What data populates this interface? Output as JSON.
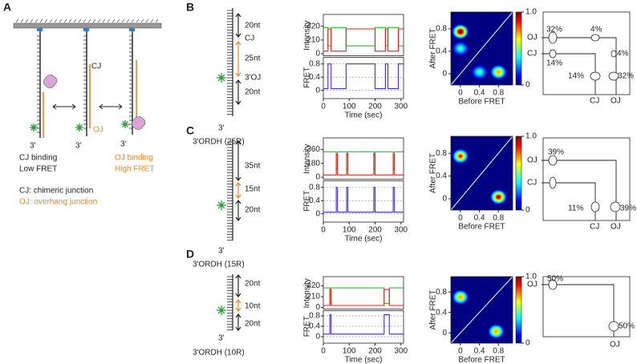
{
  "panel_a": {
    "label": "A",
    "cj": "CJ",
    "oj": "OJ",
    "three_prime": [
      "3'",
      "3'",
      "3'"
    ],
    "left_caption": [
      "CJ binding",
      "Low FRET"
    ],
    "right_caption": [
      "OJ binding",
      "High FRET"
    ],
    "legend": [
      "CJ: chimeric junction",
      "OJ: overhang junction"
    ]
  },
  "panels": [
    {
      "label": "B",
      "schematic": {
        "texts": [
          {
            "text": "20nt",
            "color": "#222222"
          },
          {
            "text": "CJ",
            "color": "#222222"
          },
          {
            "text": "25nt",
            "color": "#e8892b"
          },
          {
            "text": "3'OJ",
            "color": "#e8892b"
          },
          {
            "text": "20nt",
            "color": "#222222"
          },
          {
            "text": "3'",
            "color": "#222222"
          }
        ],
        "caption": "3'ORDH (25R)"
      },
      "trace": {
        "fret_label": "FRET",
        "int_label": "Intensity",
        "xlabel": "Time (sec)",
        "xlim": [
          0,
          310
        ],
        "xticks": [
          0,
          100,
          200,
          300
        ],
        "int_lim": [
          -30,
          600
        ],
        "int_ticks": [
          420,
          210,
          0
        ],
        "fret_lim": [
          -0.25,
          1.0
        ],
        "fret_ticks": [
          0.8,
          0.4,
          0
        ],
        "fret_grid": true,
        "time": [
          0,
          18,
          18,
          30,
          30,
          88,
          88,
          200,
          200,
          240,
          240,
          250,
          250,
          290,
          290,
          310
        ],
        "green": [
          400,
          400,
          120,
          120,
          400,
          400,
          120,
          120,
          400,
          400,
          120,
          120,
          400,
          400,
          120,
          120
        ],
        "red": [
          40,
          40,
          380,
          380,
          40,
          40,
          380,
          380,
          40,
          40,
          380,
          380,
          40,
          40,
          380,
          380
        ],
        "fret": [
          0.05,
          0.05,
          0.8,
          0.8,
          0.05,
          0.05,
          0.8,
          0.8,
          0.05,
          0.05,
          0.8,
          0.8,
          0.05,
          0.05,
          0.8,
          0.8
        ]
      },
      "heatmap": {
        "xlabel": "Before FRET",
        "ylabel": "After FRET",
        "xlim": [
          -0.2,
          1.1
        ],
        "ylim": [
          -0.2,
          1.1
        ],
        "xticks": [
          0,
          0.4,
          0.8
        ],
        "yticks": [
          0,
          0.4,
          0.8
        ],
        "cbar_lim": [
          0,
          1
        ],
        "cbar_ticks": [
          {
            "value": 1,
            "label": "1.0"
          },
          0
        ],
        "peaks": [
          {
            "before": 0,
            "after": 0.75,
            "density": 1
          },
          {
            "before": 0,
            "after": 0.45,
            "density": 0.4
          },
          {
            "before": 0.4,
            "after": 0.03,
            "density": 0.4
          },
          {
            "before": 0.8,
            "after": 0.03,
            "density": 0.7
          }
        ]
      },
      "kinetics": [
        {
          "text": "OJ",
          "color": "#e8892b"
        },
        {
          "text": "CJ",
          "color": "#222222"
        },
        {
          "text": "32%",
          "color": "#e8892b"
        },
        {
          "text": "4%",
          "color": "#222222"
        },
        {
          "text": "14%",
          "color": "#222222"
        },
        {
          "text": "4%",
          "color": "#222222"
        },
        {
          "text": "14%",
          "color": "#222222"
        },
        {
          "text": "32%",
          "color": "#e8892b"
        },
        {
          "text": "CJ",
          "color": "#222222"
        },
        {
          "text": "OJ",
          "color": "#e8892b"
        }
      ]
    },
    {
      "label": "C",
      "schematic": {
        "texts": [
          {
            "text": "35nt",
            "color": "#222222"
          },
          {
            "text": "15nt",
            "color": "#e8892b"
          },
          {
            "text": "20nt",
            "color": "#222222"
          },
          {
            "text": "3'",
            "color": "#222222"
          }
        ],
        "caption": "3'ORDH (15R)"
      },
      "trace": {
        "fret_label": "FRET",
        "int_label": "Intensity",
        "xlabel": "Time (sec)",
        "xlim": [
          0,
          310
        ],
        "xticks": [
          0,
          100,
          200,
          300
        ],
        "int_lim": [
          -25,
          510
        ],
        "int_ticks": [
          360,
          180,
          0
        ],
        "fret_lim": [
          -0.25,
          1.0
        ],
        "fret_ticks": [
          0.8,
          0.4,
          0
        ],
        "fret_grid": true,
        "time": [
          0,
          50,
          50,
          55,
          55,
          90,
          90,
          95,
          95,
          195,
          195,
          200,
          200,
          270,
          270,
          275,
          275,
          310
        ],
        "green": [
          330,
          330,
          100,
          100,
          330,
          330,
          100,
          100,
          330,
          330,
          100,
          100,
          330,
          330,
          100,
          100,
          330,
          330
        ],
        "red": [
          30,
          30,
          300,
          300,
          30,
          30,
          300,
          300,
          30,
          30,
          300,
          300,
          30,
          30,
          300,
          300,
          30,
          30
        ],
        "fret": [
          0.05,
          0.05,
          0.8,
          0.8,
          0.05,
          0.05,
          0.8,
          0.8,
          0.05,
          0.05,
          0.8,
          0.8,
          0.05,
          0.05,
          0.8,
          0.8,
          0.05,
          0.05
        ]
      },
      "heatmap": {
        "xlabel": "Before FRET",
        "ylabel": "After FRET",
        "xlim": [
          -0.2,
          1.1
        ],
        "ylim": [
          -0.2,
          1.1
        ],
        "xticks": [
          0,
          0.4,
          0.8
        ],
        "yticks": [
          0,
          0.4,
          0.8
        ],
        "cbar_lim": [
          0,
          1
        ],
        "cbar_ticks": [
          {
            "value": 1,
            "label": "1.0"
          },
          0
        ],
        "peaks": [
          {
            "before": 0,
            "after": 0.75,
            "density": 0.8
          },
          {
            "before": 0.8,
            "after": 0.03,
            "density": 0.9
          }
        ]
      },
      "kinetics": [
        {
          "text": "OJ",
          "color": "#e8892b"
        },
        {
          "text": "39%",
          "color": "#e8892b"
        },
        {
          "text": "CJ",
          "color": "#222222"
        },
        {
          "text": "11%",
          "color": "#222222"
        },
        {
          "text": "39%",
          "color": "#e8892b"
        },
        {
          "text": "CJ",
          "color": "#222222"
        },
        {
          "text": "OJ",
          "color": "#e8892b"
        }
      ]
    },
    {
      "label": "D",
      "schematic": {
        "texts": [
          {
            "text": "20nt",
            "color": "#222222"
          },
          {
            "text": "10nt",
            "color": "#e8892b"
          },
          {
            "text": "20nt",
            "color": "#222222"
          },
          {
            "text": "3'",
            "color": "#222222"
          }
        ],
        "caption": "3'ORDH (10R)"
      },
      "trace": {
        "fret_label": "FRET",
        "int_label": "Intensity",
        "xlabel": "Time (sec)",
        "xlim": [
          0,
          310
        ],
        "xticks": [
          0,
          100,
          200,
          300
        ],
        "int_lim": [
          -30,
          600
        ],
        "int_ticks": [
          420,
          210,
          0
        ],
        "fret_lim": [
          -0.25,
          1.0
        ],
        "fret_ticks": [
          0.8,
          0.4,
          0
        ],
        "fret_grid": true,
        "time": [
          0,
          25,
          25,
          30,
          30,
          235,
          235,
          255,
          255,
          310
        ],
        "green": [
          380,
          380,
          80,
          80,
          380,
          380,
          80,
          80,
          380,
          380
        ],
        "red": [
          40,
          40,
          350,
          350,
          40,
          40,
          350,
          350,
          40,
          40
        ],
        "fret": [
          0.1,
          0.1,
          0.85,
          0.85,
          0.1,
          0.1,
          0.85,
          0.85,
          0.1,
          0.1
        ]
      },
      "heatmap": {
        "xlabel": "Before FRET",
        "ylabel": "After FRET",
        "xlim": [
          -0.2,
          1.1
        ],
        "ylim": [
          -0.2,
          1.1
        ],
        "xticks": [
          0,
          0.4,
          0.8
        ],
        "yticks": [
          0,
          0.4,
          0.8
        ],
        "cbar_lim": [
          0,
          1
        ],
        "cbar_ticks": [
          {
            "value": 1,
            "label": "1.0"
          },
          0
        ],
        "peaks": [
          {
            "before": 0,
            "after": 0.7,
            "density": 0.7
          },
          {
            "before": 0.75,
            "after": 0.03,
            "density": 0.7
          }
        ]
      },
      "kinetics": [
        {
          "text": "OJ",
          "color": "#e8892b"
        },
        {
          "text": "50%",
          "color": "#e8892b"
        },
        {
          "text": "50%",
          "color": "#e8892b"
        },
        {
          "text": "OJ",
          "color": "#e8892b"
        }
      ]
    }
  ]
}
